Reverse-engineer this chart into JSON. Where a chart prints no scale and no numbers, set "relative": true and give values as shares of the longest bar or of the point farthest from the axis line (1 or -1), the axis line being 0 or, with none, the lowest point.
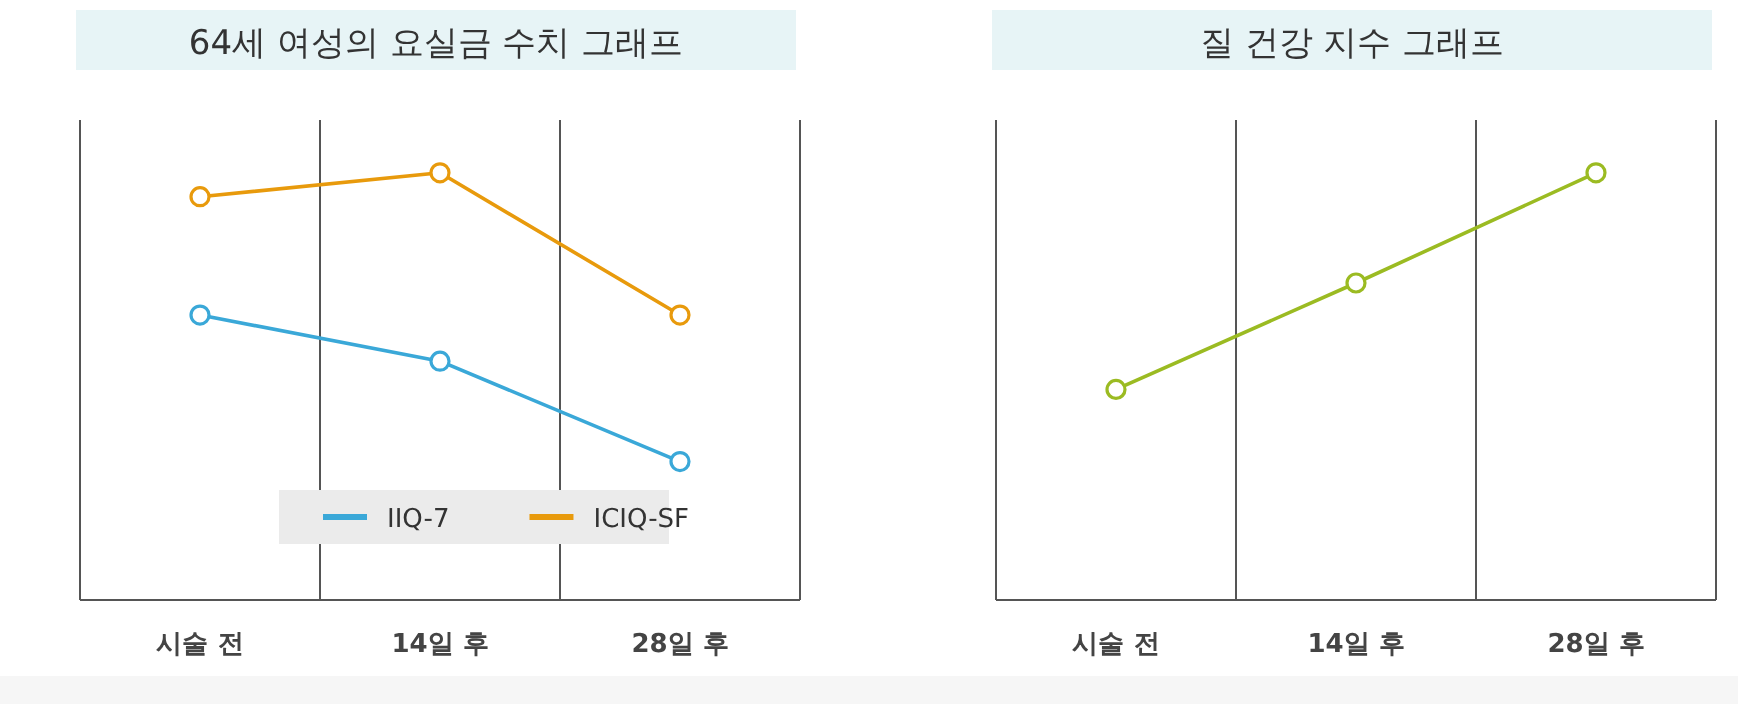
{
  "chart_data": [
    {
      "type": "line",
      "title": "64세 여성의 요실금 수치 그래프",
      "relative": true,
      "categories": [
        "시술 전",
        "14일 후",
        "28일 후"
      ],
      "grid": "x",
      "legend": "bottom",
      "marker": "circle",
      "series": [
        {
          "name": "IIQ-7",
          "color": "#3aa8d8",
          "values": [
            0.667,
            0.559,
            0.324
          ]
        },
        {
          "name": "ICIQ-SF",
          "color": "#e89a0c",
          "values": [
            0.944,
            1,
            0.667
          ]
        }
      ]
    },
    {
      "type": "line",
      "title": "질 건강 지수 그래프",
      "relative": true,
      "categories": [
        "시술 전",
        "14일 후",
        "28일 후"
      ],
      "grid": "x",
      "marker": "circle",
      "series": [
        {
          "color": "#9bbb22",
          "values": [
            0.493,
            0.742,
            1
          ]
        }
      ]
    }
  ]
}
